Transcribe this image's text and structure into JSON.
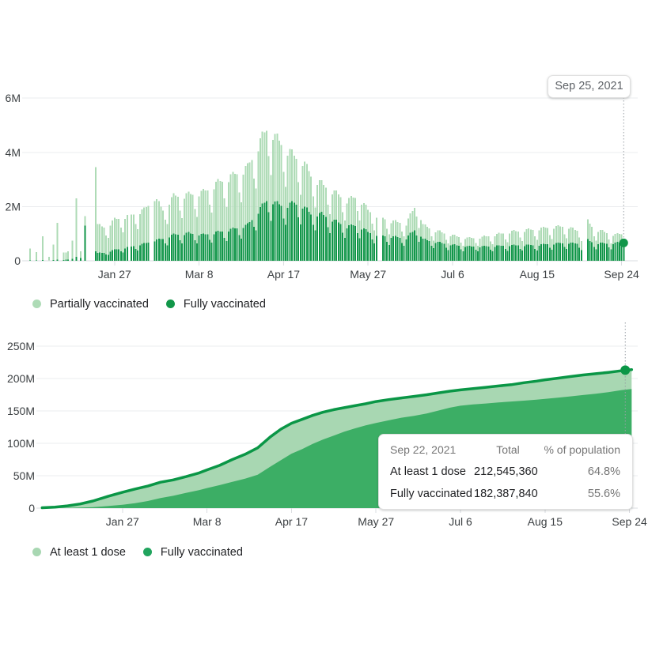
{
  "colors": {
    "partial": "#aedbb6",
    "full": "#119649",
    "area_outer": "#a8d7b2",
    "area_inner": "#3cae65",
    "line": "#0a9646",
    "legend_full_bottom": "#21a45e",
    "grid": "#ebedef",
    "baseline": "#dadce0",
    "tick": "#dadce0",
    "axis_text": "#3c4043",
    "dotted": "#9aa0a6"
  },
  "top_legend": {
    "items": [
      {
        "label": "Partially vaccinated",
        "color": "colors.partial"
      },
      {
        "label": "Fully vaccinated",
        "color": "colors.full"
      }
    ]
  },
  "bottom_legend": {
    "items": [
      {
        "label": "At least 1 dose",
        "color": "colors.area_outer"
      },
      {
        "label": "Fully vaccinated",
        "color": "colors.legend_full_bottom"
      }
    ]
  },
  "chart_data": [
    {
      "type": "bar",
      "stacked": true,
      "series": [
        "Partially vaccinated",
        "Fully vaccinated"
      ],
      "units": "millions of people per day",
      "y_ticks": [
        {
          "label": "0",
          "value": 0
        },
        {
          "label": "2M",
          "value": 2
        },
        {
          "label": "4M",
          "value": 4
        },
        {
          "label": "6M",
          "value": 6
        }
      ],
      "y_max": 6,
      "x_ticks": [
        {
          "label": "Jan 27",
          "day": 40
        },
        {
          "label": "Mar 8",
          "day": 80
        },
        {
          "label": "Apr 17",
          "day": 120
        },
        {
          "label": "May 27",
          "day": 160
        },
        {
          "label": "Jul 6",
          "day": 200
        },
        {
          "label": "Aug 15",
          "day": 240
        },
        {
          "label": "Sep 24",
          "day": 280
        }
      ],
      "n_days": 282,
      "early_bars": [
        [
          0,
          0.45,
          0.02
        ],
        [
          3,
          0.32,
          0.02
        ],
        [
          6,
          0.9,
          0.03
        ],
        [
          9,
          0.15,
          0.01
        ],
        [
          11,
          0.6,
          0.03
        ],
        [
          13,
          1.4,
          0.05
        ],
        [
          16,
          0.3,
          0.03
        ],
        [
          17,
          0.3,
          0.04
        ],
        [
          18,
          0.35,
          0.05
        ],
        [
          20,
          0.75,
          0.08
        ],
        [
          22,
          2.3,
          0.15
        ],
        [
          24,
          0.35,
          0.1
        ],
        [
          26,
          1.65,
          1.3
        ],
        [
          31,
          3.45,
          0.35
        ]
      ],
      "anchors": [
        [
          32,
          1.3,
          0.28
        ],
        [
          36,
          1.2,
          0.3
        ],
        [
          40,
          1.5,
          0.4
        ],
        [
          47,
          1.65,
          0.5
        ],
        [
          54,
          1.85,
          0.62
        ],
        [
          59,
          2.3,
          0.75
        ],
        [
          63,
          1.85,
          0.8
        ],
        [
          68,
          2.35,
          0.95
        ],
        [
          75,
          2.4,
          1.0
        ],
        [
          82,
          2.5,
          0.95
        ],
        [
          89,
          2.85,
          1.05
        ],
        [
          96,
          3.1,
          1.15
        ],
        [
          103,
          3.4,
          1.3
        ],
        [
          108,
          4.2,
          1.8
        ],
        [
          113,
          4.95,
          2.3
        ],
        [
          116,
          4.5,
          2.1
        ],
        [
          120,
          4.2,
          2.0
        ],
        [
          125,
          3.8,
          2.1
        ],
        [
          129,
          3.65,
          2.0
        ],
        [
          133,
          3.1,
          1.7
        ],
        [
          138,
          2.8,
          1.7
        ],
        [
          143,
          2.55,
          1.5
        ],
        [
          150,
          2.2,
          1.25
        ],
        [
          155,
          2.35,
          1.3
        ],
        [
          160,
          1.85,
          1.05
        ],
        [
          164,
          1.65,
          0.95
        ],
        [
          171,
          1.45,
          0.88
        ],
        [
          178,
          1.35,
          0.82
        ],
        [
          183,
          2.1,
          1.2
        ],
        [
          186,
          1.3,
          0.78
        ],
        [
          192,
          1.1,
          0.68
        ],
        [
          200,
          0.92,
          0.58
        ],
        [
          207,
          0.82,
          0.52
        ],
        [
          214,
          0.86,
          0.52
        ],
        [
          221,
          0.96,
          0.54
        ],
        [
          228,
          1.06,
          0.56
        ],
        [
          235,
          1.12,
          0.57
        ],
        [
          240,
          1.16,
          0.57
        ],
        [
          247,
          1.22,
          0.62
        ],
        [
          254,
          1.26,
          0.66
        ],
        [
          258,
          1.12,
          0.63
        ],
        [
          261,
          1.1,
          0.6
        ],
        [
          264,
          1.45,
          0.75
        ],
        [
          267,
          1.15,
          0.65
        ],
        [
          272,
          1.05,
          0.63
        ],
        [
          276,
          0.95,
          0.64
        ],
        [
          281,
          0.98,
          0.68
        ]
      ],
      "weekly_multipliers": [
        1.0,
        0.78,
        0.66,
        0.96,
        1.04,
        1.06,
        1.02
      ],
      "gap_days": [
        47,
        57,
        58,
        165,
        166,
        262,
        263
      ],
      "marker": {
        "day": 281,
        "series": "Fully vaccinated",
        "value": 0.66
      },
      "tooltip": {
        "date": "Sep 25, 2021"
      }
    },
    {
      "type": "area",
      "series": [
        "At least 1 dose",
        "Fully vaccinated"
      ],
      "units": "millions of people, cumulative",
      "y_ticks": [
        {
          "label": "0",
          "value": 0
        },
        {
          "label": "50M",
          "value": 50
        },
        {
          "label": "100M",
          "value": 100
        },
        {
          "label": "150M",
          "value": 150
        },
        {
          "label": "200M",
          "value": 200
        },
        {
          "label": "250M",
          "value": 250
        }
      ],
      "y_max": 250,
      "x_ticks": [
        {
          "label": "Jan 27",
          "day": 40
        },
        {
          "label": "Mar 8",
          "day": 80
        },
        {
          "label": "Apr 17",
          "day": 120
        },
        {
          "label": "May 27",
          "day": 160
        },
        {
          "label": "Jul 6",
          "day": 200
        },
        {
          "label": "Aug 15",
          "day": 240
        },
        {
          "label": "Sep 24",
          "day": 280
        }
      ],
      "points": [
        [
          2,
          0.6,
          0
        ],
        [
          8,
          1.5,
          0.1
        ],
        [
          14,
          3.5,
          0.3
        ],
        [
          20,
          6.5,
          0.8
        ],
        [
          26,
          11,
          1.5
        ],
        [
          33,
          18,
          3.2
        ],
        [
          40,
          24.5,
          5.3
        ],
        [
          46,
          29.5,
          7.5
        ],
        [
          52,
          34,
          11
        ],
        [
          58,
          40,
          15.5
        ],
        [
          64,
          43.5,
          19
        ],
        [
          70,
          48.5,
          23.5
        ],
        [
          76,
          54,
          27.5
        ],
        [
          80,
          59,
          31
        ],
        [
          86,
          66,
          35.5
        ],
        [
          92,
          75,
          40.5
        ],
        [
          98,
          83,
          45.5
        ],
        [
          104,
          93,
          51.5
        ],
        [
          110,
          110,
          64
        ],
        [
          115,
          122,
          74
        ],
        [
          120,
          131,
          84
        ],
        [
          125,
          137,
          91
        ],
        [
          130,
          143,
          99
        ],
        [
          135,
          148,
          106
        ],
        [
          140,
          152,
          112
        ],
        [
          145,
          155,
          118
        ],
        [
          150,
          158,
          123
        ],
        [
          155,
          161,
          127.5
        ],
        [
          160,
          164.5,
          131.5
        ],
        [
          166,
          167.5,
          135.5
        ],
        [
          172,
          170,
          139.5
        ],
        [
          178,
          172.5,
          142.5
        ],
        [
          184,
          175,
          146
        ],
        [
          190,
          178,
          151
        ],
        [
          195,
          180.5,
          155
        ],
        [
          200,
          182.5,
          158
        ],
        [
          206,
          184.5,
          160
        ],
        [
          212,
          186.5,
          161.5
        ],
        [
          218,
          188.5,
          163
        ],
        [
          224,
          190.5,
          164.5
        ],
        [
          230,
          193.5,
          165.8
        ],
        [
          236,
          196,
          167.5
        ],
        [
          240,
          198,
          168.5
        ],
        [
          246,
          200.5,
          170.5
        ],
        [
          252,
          203,
          172.5
        ],
        [
          258,
          205.5,
          174.5
        ],
        [
          264,
          207.5,
          176.5
        ],
        [
          270,
          209.5,
          179
        ],
        [
          276,
          212,
          182
        ],
        [
          281,
          213.8,
          183.8
        ]
      ],
      "marker": {
        "day": 278,
        "series": "At least 1 dose",
        "value": 213
      },
      "tooltip": {
        "date": "Sep 22, 2021",
        "col_total": "Total",
        "col_pct": "% of population",
        "rows": [
          {
            "label": "At least 1 dose",
            "total": "212,545,360",
            "pct": "64.8%"
          },
          {
            "label": "Fully vaccinated",
            "total": "182,387,840",
            "pct": "55.6%"
          }
        ]
      }
    }
  ]
}
